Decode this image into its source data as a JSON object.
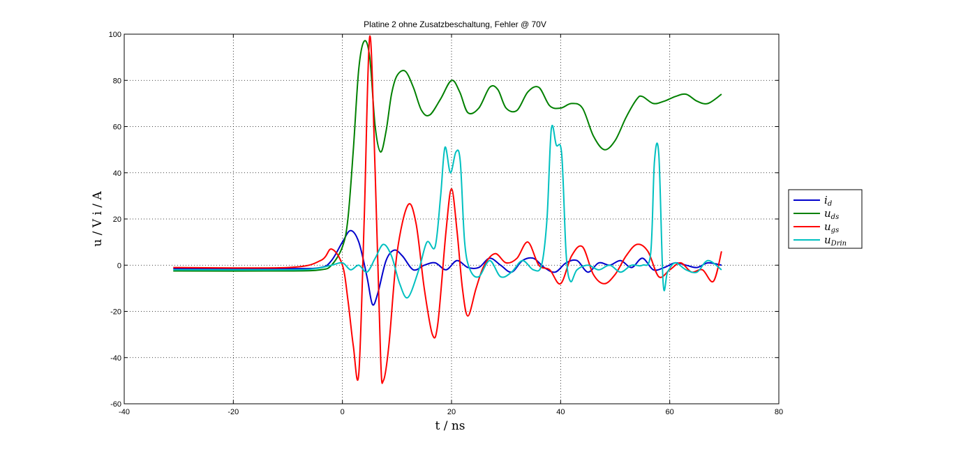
{
  "chart_data": {
    "type": "line",
    "title": "Platine 2 ohne Zusatzbeschaltung, Fehler @ 70V",
    "xlabel": "t / ns",
    "ylabel": "u / V i / A",
    "xlim": [
      -40,
      80
    ],
    "ylim": [
      -60,
      100
    ],
    "xticks": [
      -40,
      -20,
      0,
      20,
      40,
      60,
      80
    ],
    "yticks": [
      -60,
      -40,
      -20,
      0,
      20,
      40,
      60,
      80,
      100
    ],
    "xtick_labels": [
      "-40",
      "-20",
      "0",
      "20",
      "40",
      "60",
      "80"
    ],
    "ytick_labels": [
      "-60",
      "-40",
      "-20",
      "0",
      "20",
      "40",
      "60",
      "80",
      "100"
    ],
    "grid": true,
    "legend_position": "right",
    "series": [
      {
        "name": "i_d",
        "label_main": "i",
        "label_sub": "d",
        "color": "#0000cc",
        "x": [
          -31,
          -10,
          -4,
          -2,
          0,
          1.5,
          3,
          4.5,
          5.5,
          6.5,
          8,
          9.5,
          11,
          13,
          15,
          17,
          19,
          21,
          23,
          25,
          27,
          29,
          31,
          33,
          35,
          37,
          39,
          41,
          43,
          45,
          47,
          49,
          51,
          53,
          55,
          57,
          59,
          61,
          63,
          65,
          67,
          69.5
        ],
        "y": [
          -1.5,
          -1.5,
          -1,
          2,
          10,
          15,
          10,
          -5,
          -17,
          -12,
          2,
          6.5,
          4,
          -2,
          0,
          1,
          -2,
          2,
          -1,
          -1,
          3,
          0,
          -3,
          2,
          3,
          -1,
          -3,
          1,
          2,
          -3,
          1,
          0,
          2,
          -1,
          3,
          -2,
          -1,
          1,
          0,
          -1,
          1,
          0
        ]
      },
      {
        "name": "u_ds",
        "label_main": "u",
        "label_sub": "ds",
        "color": "#008000",
        "x": [
          -31,
          -10,
          -4,
          -2,
          0,
          1,
          2,
          3,
          4,
          5,
          6,
          7,
          8,
          9,
          10,
          11.5,
          13,
          14.5,
          16,
          18,
          20,
          21.5,
          23,
          25,
          27,
          28.5,
          30,
          32,
          34,
          36,
          38,
          40,
          42,
          44,
          46,
          48,
          50,
          52,
          54,
          55,
          57,
          59,
          61,
          63,
          65,
          67,
          69.5
        ],
        "y": [
          -2.5,
          -2.5,
          -2,
          0,
          8,
          20,
          50,
          85,
          97,
          90,
          60,
          49,
          58,
          74,
          82,
          84,
          77,
          67,
          65,
          72,
          80,
          75,
          66,
          68,
          77,
          76,
          68,
          67,
          75,
          77,
          69,
          68,
          70,
          68,
          56,
          50,
          54,
          64,
          72,
          73,
          70,
          71,
          73,
          74,
          71,
          70,
          74
        ]
      },
      {
        "name": "u_gs",
        "label_main": "u",
        "label_sub": "gs",
        "color": "#ff0000",
        "x": [
          -31,
          -10,
          -4,
          -2,
          0,
          1,
          2,
          3,
          4,
          5,
          6,
          7,
          7.5,
          8.5,
          10,
          12,
          13.5,
          15,
          16.5,
          17.5,
          19,
          20,
          21,
          22,
          23,
          24.5,
          26,
          28,
          30,
          32,
          34,
          36,
          38,
          40,
          42,
          44,
          46,
          48,
          50,
          52,
          54,
          56,
          58,
          60,
          62,
          64,
          66,
          68,
          69.5
        ],
        "y": [
          -1,
          -1,
          2,
          7,
          0,
          -15,
          -35,
          -47,
          20,
          99,
          40,
          -40,
          -50,
          -35,
          5,
          26,
          18,
          -10,
          -30,
          -25,
          15,
          33,
          15,
          -10,
          -22,
          -10,
          0,
          5,
          1,
          3,
          10,
          0,
          -2,
          -8,
          4,
          8,
          -4,
          -8,
          -4,
          4,
          9,
          6,
          -5,
          -2,
          1,
          -3,
          -2,
          -7,
          6
        ]
      },
      {
        "name": "u_Drin",
        "label_main": "u",
        "label_sub": "Drin",
        "color": "#00c0c0",
        "x": [
          -31,
          -10,
          -5,
          -2,
          0,
          1.5,
          3,
          4.5,
          6,
          7.5,
          9,
          10.5,
          12,
          14,
          15.5,
          17,
          18,
          18.8,
          19.8,
          20.8,
          21.6,
          22.4,
          23.4,
          25,
          27,
          29,
          31,
          33,
          35,
          36.5,
          37.5,
          38.3,
          39.2,
          40.2,
          41,
          41.8,
          43,
          45,
          47,
          49,
          51,
          53,
          55,
          56.5,
          57.2,
          58,
          58.8,
          59.6,
          61,
          63,
          65,
          67,
          69.5
        ],
        "y": [
          -2,
          -2,
          -1.5,
          0,
          1,
          -2,
          0,
          -3,
          3,
          9,
          4,
          -8,
          -14,
          -2,
          10,
          8,
          30,
          51,
          40,
          49,
          45,
          10,
          -2,
          -5,
          2,
          -5,
          -3,
          2,
          -2,
          0,
          20,
          59,
          52,
          48,
          5,
          -7,
          -2,
          0,
          -2,
          0,
          -3,
          0,
          0,
          5,
          45,
          48,
          -8,
          -3,
          1,
          -2,
          -3,
          2,
          -2
        ]
      }
    ]
  }
}
